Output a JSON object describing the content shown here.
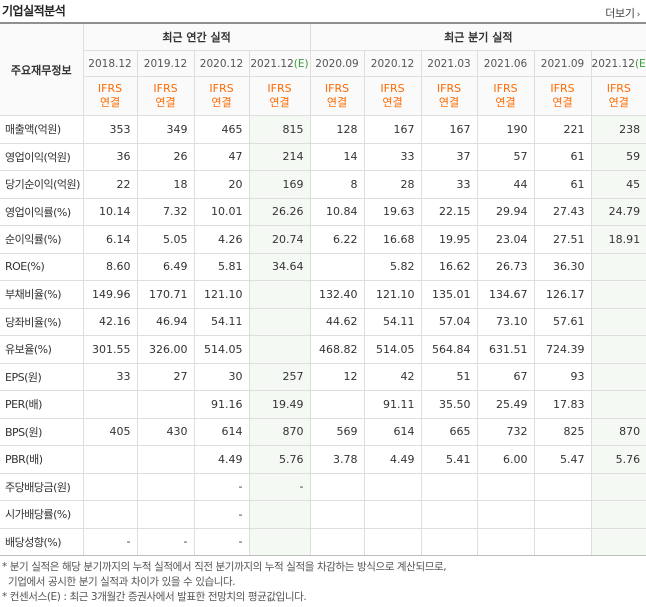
{
  "header": {
    "title": "기업실적분석",
    "more": "더보기"
  },
  "table": {
    "row_header": "주요재무정보",
    "groups": [
      "최근 연간 실적",
      "최근 분기 실적"
    ],
    "annual_periods": [
      "2018.12",
      "2019.12",
      "2020.12",
      "2021.12"
    ],
    "quarter_periods": [
      "2020.09",
      "2020.12",
      "2021.03",
      "2021.06",
      "2021.09",
      "2021.12"
    ],
    "estimate_mark": "(E)",
    "ifrs_line1": "IFRS",
    "ifrs_line2": "연결",
    "rows": [
      {
        "label": "매출액(억원)",
        "values": [
          "353",
          "349",
          "465",
          "815",
          "128",
          "167",
          "167",
          "190",
          "221",
          "238"
        ]
      },
      {
        "label": "영업이익(억원)",
        "values": [
          "36",
          "26",
          "47",
          "214",
          "14",
          "33",
          "37",
          "57",
          "61",
          "59"
        ]
      },
      {
        "label": "당기순이익(억원)",
        "values": [
          "22",
          "18",
          "20",
          "169",
          "8",
          "28",
          "33",
          "44",
          "61",
          "45"
        ]
      },
      {
        "label": "영업이익률(%)",
        "values": [
          "10.14",
          "7.32",
          "10.01",
          "26.26",
          "10.84",
          "19.63",
          "22.15",
          "29.94",
          "27.43",
          "24.79"
        ]
      },
      {
        "label": "순이익률(%)",
        "values": [
          "6.14",
          "5.05",
          "4.26",
          "20.74",
          "6.22",
          "16.68",
          "19.95",
          "23.04",
          "27.51",
          "18.91"
        ]
      },
      {
        "label": "ROE(%)",
        "values": [
          "8.60",
          "6.49",
          "5.81",
          "34.64",
          "",
          "5.82",
          "16.62",
          "26.73",
          "36.30",
          ""
        ]
      },
      {
        "label": "부채비율(%)",
        "values": [
          "149.96",
          "170.71",
          "121.10",
          "",
          "132.40",
          "121.10",
          "135.01",
          "134.67",
          "126.17",
          ""
        ]
      },
      {
        "label": "당좌비율(%)",
        "values": [
          "42.16",
          "46.94",
          "54.11",
          "",
          "44.62",
          "54.11",
          "57.04",
          "73.10",
          "57.61",
          ""
        ]
      },
      {
        "label": "유보율(%)",
        "values": [
          "301.55",
          "326.00",
          "514.05",
          "",
          "468.82",
          "514.05",
          "564.84",
          "631.51",
          "724.39",
          ""
        ]
      },
      {
        "label": "EPS(원)",
        "values": [
          "33",
          "27",
          "30",
          "257",
          "12",
          "42",
          "51",
          "67",
          "93",
          ""
        ]
      },
      {
        "label": "PER(배)",
        "values": [
          "",
          "",
          "91.16",
          "19.49",
          "",
          "91.11",
          "35.50",
          "25.49",
          "17.83",
          ""
        ]
      },
      {
        "label": "BPS(원)",
        "values": [
          "405",
          "430",
          "614",
          "870",
          "569",
          "614",
          "665",
          "732",
          "825",
          "870"
        ]
      },
      {
        "label": "PBR(배)",
        "values": [
          "",
          "",
          "4.49",
          "5.76",
          "3.78",
          "4.49",
          "5.41",
          "6.00",
          "5.47",
          "5.76"
        ]
      },
      {
        "label": "주당배당금(원)",
        "values": [
          "",
          "",
          "-",
          "-",
          "",
          "",
          "",
          "",
          "",
          ""
        ]
      },
      {
        "label": "시가배당률(%)",
        "values": [
          "",
          "",
          "-",
          "",
          "",
          "",
          "",
          "",
          "",
          ""
        ]
      },
      {
        "label": "배당성향(%)",
        "values": [
          "-",
          "-",
          "-",
          "",
          "",
          "",
          "",
          "",
          "",
          ""
        ]
      }
    ]
  },
  "notes": [
    "* 분기 실적은 해당 분기까지의 누적 실적에서 직전 분기까지의 누적 실적을 차감하는 방식으로 계산되므로,",
    "기업에서 공시한 분기 실적과 차이가 있을 수 있습니다.",
    "* 컨센서스(E) : 최근 3개월간 증권사에서 발표한 전망치의 평균값입니다."
  ]
}
